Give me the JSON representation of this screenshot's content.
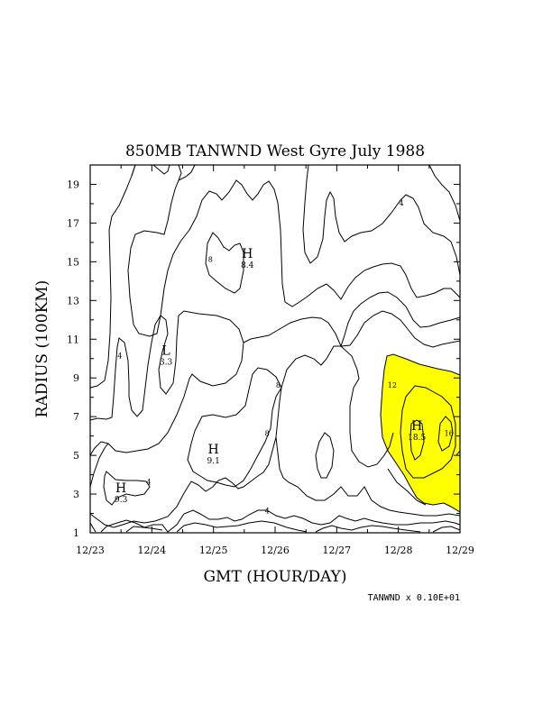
{
  "chart_data": {
    "type": "contour",
    "title": "850MB TANWND West Gyre July 1988",
    "xlabel": "GMT (HOUR/DAY)",
    "ylabel": "RADIUS (100KM)",
    "x_ticks": [
      "12/23",
      "12/24",
      "12/25",
      "12/26",
      "12/27",
      "12/28",
      "12/29"
    ],
    "y_ticks": [
      "1",
      "3",
      "5",
      "7",
      "9",
      "11",
      "13",
      "15",
      "17",
      "19"
    ],
    "xlim": [
      0,
      6
    ],
    "ylim": [
      1,
      20
    ],
    "scale_note": "TANWND x  0.10E+01",
    "highlight_color": "#ffff00",
    "highlight_threshold": 12,
    "extrema": [
      {
        "kind": "H",
        "value": "8.4",
        "x": 2.55,
        "y": 15.2
      },
      {
        "kind": "L",
        "value": "3.3",
        "x": 1.23,
        "y": 10.2
      },
      {
        "kind": "H",
        "value": "9.1",
        "x": 2.0,
        "y": 5.1
      },
      {
        "kind": "H",
        "value": "9.3",
        "x": 0.5,
        "y": 3.1
      },
      {
        "kind": "H",
        "value": "18.5",
        "x": 5.3,
        "y": 6.3
      }
    ],
    "contour_labels": [
      {
        "text": "8",
        "x": 1.95,
        "y": 15.0
      },
      {
        "text": "4",
        "x": 0.48,
        "y": 10.0
      },
      {
        "text": "4",
        "x": 0.95,
        "y": 3.5
      },
      {
        "text": "8",
        "x": 3.05,
        "y": 8.5
      },
      {
        "text": "8",
        "x": 2.87,
        "y": 6.0
      },
      {
        "text": "4",
        "x": 2.87,
        "y": 2.0
      },
      {
        "text": "12",
        "x": 4.9,
        "y": 8.5
      },
      {
        "text": "4",
        "x": 5.05,
        "y": 17.9
      },
      {
        "text": "16",
        "x": 5.82,
        "y": 6.0
      }
    ]
  }
}
